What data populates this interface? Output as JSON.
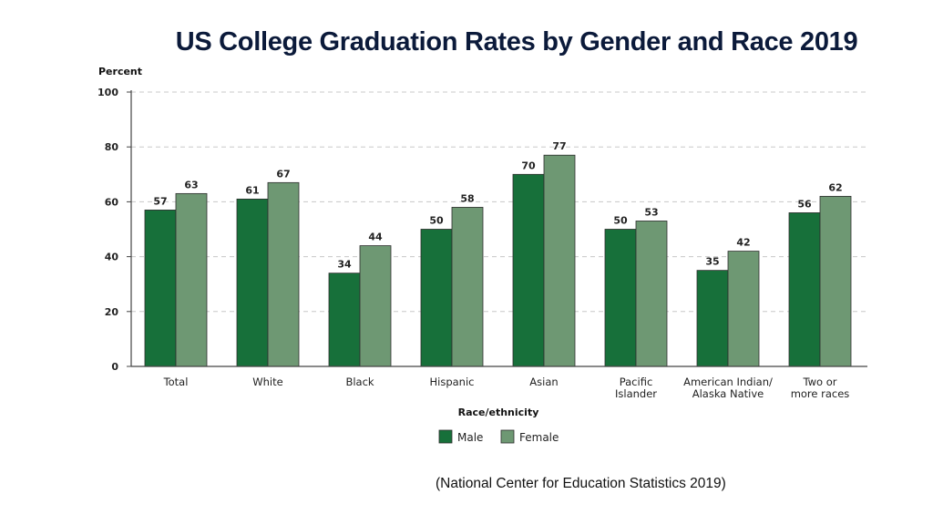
{
  "chart_data": {
    "type": "bar",
    "title": "US College Graduation Rates by Gender and Race 2019",
    "ylabel": "Percent",
    "xlabel": "Race/ethnicity",
    "ylim": [
      0,
      100
    ],
    "yticks": [
      "0",
      "20",
      "40",
      "60",
      "80",
      "100"
    ],
    "grid": true,
    "legend_position": "bottom",
    "categories": [
      [
        "Total"
      ],
      [
        "White"
      ],
      [
        "Black"
      ],
      [
        "Hispanic"
      ],
      [
        "Asian"
      ],
      [
        "Pacific",
        "Islander"
      ],
      [
        "American Indian/",
        "Alaska Native"
      ],
      [
        "Two or",
        "more races"
      ]
    ],
    "series": [
      {
        "name": "Male",
        "color": "#17703a",
        "values": [
          57,
          61,
          34,
          50,
          70,
          50,
          35,
          56
        ]
      },
      {
        "name": "Female",
        "color": "#6e9873",
        "values": [
          63,
          67,
          44,
          58,
          77,
          53,
          42,
          62
        ]
      }
    ]
  },
  "source_note": "(National Center for Education Statistics 2019)"
}
